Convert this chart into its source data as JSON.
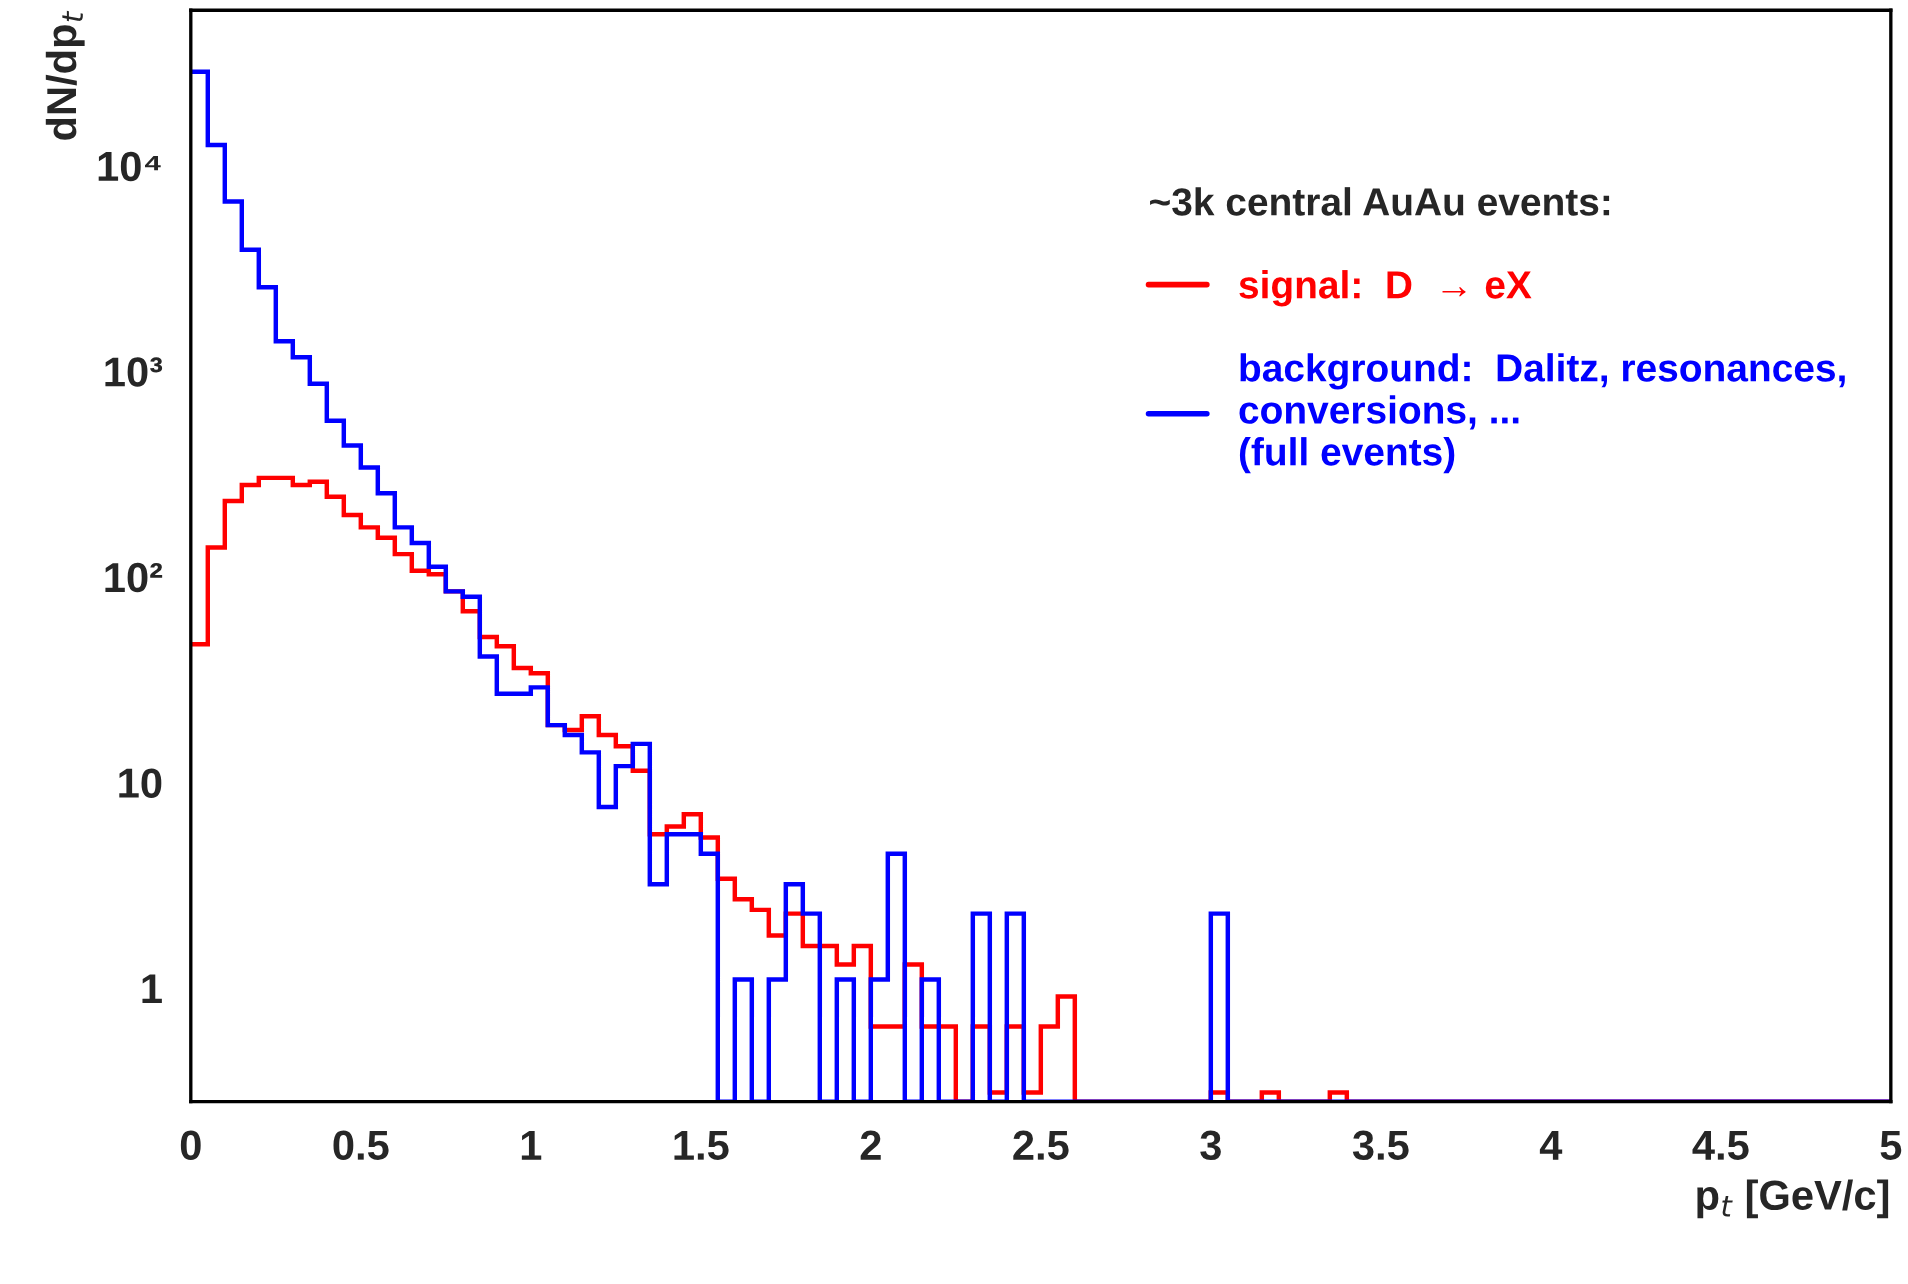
{
  "chart_data": {
    "type": "histogram",
    "xlabel": "p$_{t}$ [GeV/c]",
    "ylabel": "dN/dp$_{t}$",
    "legend_title": "~3k central AuAu events:",
    "bins": [
      0,
      0.05,
      0.1,
      0.15,
      0.2,
      0.25,
      0.3,
      0.35,
      0.4,
      0.45,
      0.5,
      0.55,
      0.6,
      0.65,
      0.7,
      0.75,
      0.8,
      0.85,
      0.9,
      0.95,
      1,
      1.05,
      1.1,
      1.15,
      1.2,
      1.25,
      1.3,
      1.35,
      1.4,
      1.45,
      1.5,
      1.55,
      1.6,
      1.65,
      1.7,
      1.75,
      1.8,
      1.85,
      1.9,
      1.95,
      2,
      2.05,
      2.1,
      2.15,
      2.2,
      2.25,
      2.3,
      2.35,
      2.4,
      2.45,
      2.5,
      2.55,
      2.6,
      2.65,
      2.7,
      2.75,
      2.8,
      2.85,
      2.9,
      2.95,
      3,
      3.05,
      3.1,
      3.15,
      3.2,
      3.25,
      3.3,
      3.35,
      3.4,
      3.45,
      3.5,
      3.55,
      3.6,
      3.65,
      3.7,
      3.75,
      3.8,
      3.85,
      3.9,
      3.95,
      4,
      4.05,
      4.1,
      4.15,
      4.2,
      4.25,
      4.3,
      4.35,
      4.4,
      4.45,
      4.5,
      4.55,
      4.6,
      4.65,
      4.7,
      4.75,
      4.8,
      4.85,
      4.9,
      4.95,
      5
    ],
    "series": [
      {
        "name": "signal:  D  → eX",
        "color": "#ff0000",
        "values": [
          47,
          139,
          234,
          280,
          303,
          303,
          280,
          290,
          245,
          200,
          174,
          155,
          129,
          107,
          103,
          85,
          68,
          51,
          46,
          36,
          34,
          19,
          18,
          21,
          17,
          15,
          11.4,
          5.6,
          6.1,
          7.0,
          5.4,
          3.4,
          2.7,
          2.4,
          1.8,
          2.3,
          1.6,
          1.6,
          1.3,
          1.6,
          0.65,
          0.65,
          1.3,
          0.65,
          0.65,
          null,
          0.65,
          0.31,
          0.65,
          0.31,
          0.65,
          0.91,
          null,
          null,
          null,
          null,
          null,
          null,
          null,
          null,
          0.31,
          null,
          null,
          0.31,
          null,
          null,
          null,
          0.31,
          null,
          null,
          null,
          null,
          null,
          null,
          null,
          null,
          null,
          null,
          null,
          null,
          null,
          null,
          null,
          null,
          null,
          null,
          null,
          null,
          null,
          null,
          null,
          null,
          null,
          null,
          null,
          null,
          null,
          null,
          null,
          null
        ]
      },
      {
        "name": "background:  Dalitz, resonances,\nconversions, ...\n(full events)",
        "color": "#0000ff",
        "values": [
          28600,
          12600,
          6700,
          3900,
          2560,
          1400,
          1170,
          870,
          575,
          435,
          340,
          255,
          174,
          146,
          112,
          85,
          80,
          41,
          27,
          27,
          29,
          19,
          17,
          14,
          7.6,
          12,
          15.4,
          3.2,
          5.6,
          5.6,
          4.5,
          null,
          1.1,
          null,
          1.1,
          3.2,
          2.3,
          null,
          1.1,
          null,
          1.1,
          4.5,
          null,
          1.1,
          null,
          null,
          2.3,
          null,
          2.3,
          null,
          null,
          null,
          null,
          null,
          null,
          null,
          null,
          null,
          null,
          null,
          2.3,
          null,
          null,
          null,
          null,
          null,
          null,
          null,
          null,
          null,
          null,
          null,
          null,
          null,
          null,
          null,
          null,
          null,
          null,
          null,
          null,
          null,
          null,
          null,
          null,
          null,
          null,
          null,
          null,
          null,
          null,
          null,
          null,
          null,
          null,
          null,
          null,
          null,
          null,
          null
        ]
      }
    ],
    "log": "y",
    "xlim": [
      0,
      5
    ],
    "xticks": [
      0,
      0.5,
      1,
      1.5,
      2,
      2.5,
      3,
      3.5,
      4,
      4.5,
      5
    ],
    "ylim": [
      0.28,
      57000
    ],
    "yticks": [
      1,
      10,
      {
        "value": 100,
        "label": "10²"
      },
      {
        "value": 1000,
        "label": "10³"
      },
      {
        "value": 10000,
        "label": "10⁴"
      }
    ],
    "legend": "top right",
    "grid": false
  }
}
